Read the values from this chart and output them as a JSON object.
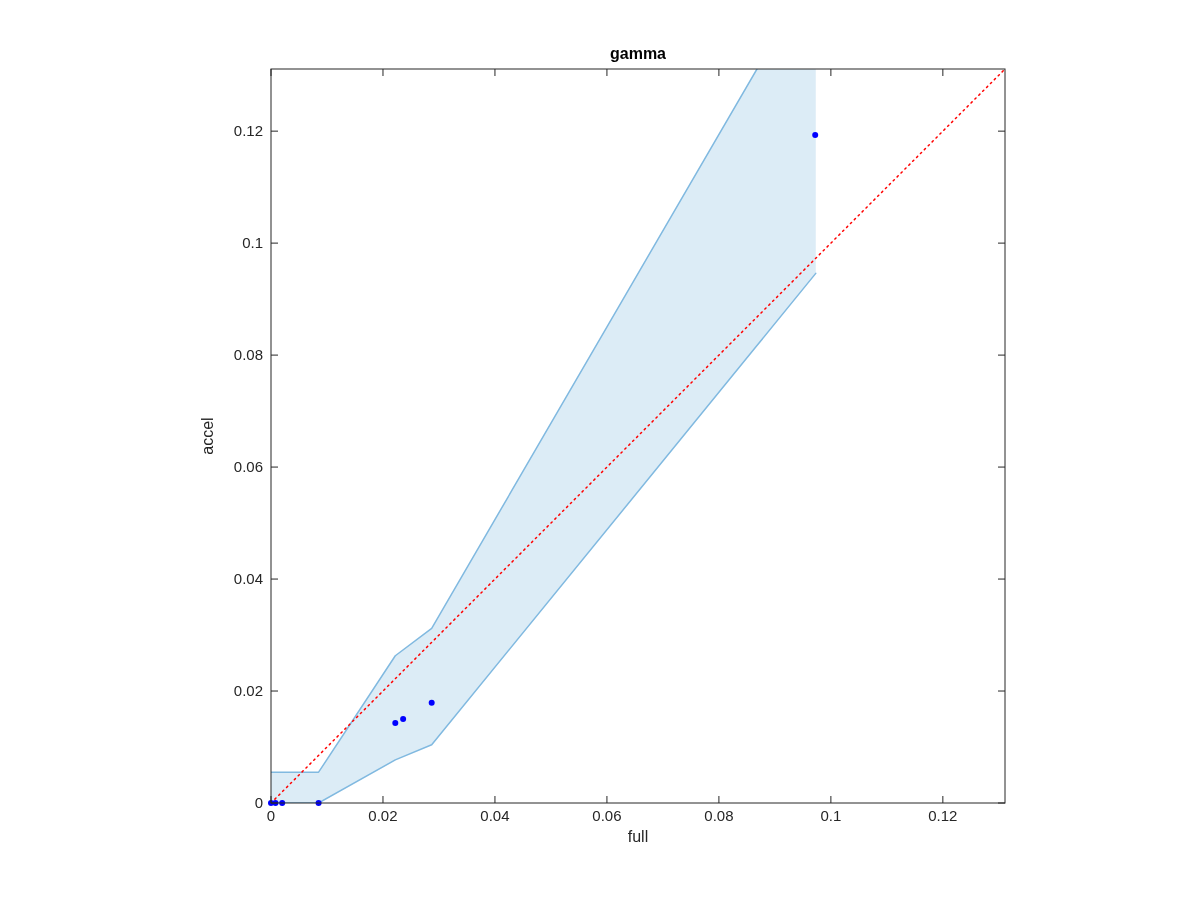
{
  "chart_data": {
    "type": "line",
    "title": "gamma",
    "xlabel": "full",
    "ylabel": "accel",
    "xlim": [
      0,
      0.1311
    ],
    "ylim": [
      0,
      0.1311
    ],
    "xticks": [
      0,
      0.02,
      0.04,
      0.06,
      0.08,
      0.1,
      0.12
    ],
    "yticks": [
      0,
      0.02,
      0.04,
      0.06,
      0.08,
      0.1,
      0.12
    ],
    "grid": false,
    "series": [
      {
        "color": "#80b9e0",
        "marker": "none",
        "x": [
          0,
          0.0085,
          0.0222,
          0.0287,
          0.0868,
          0.0973
        ],
        "values": [
          0,
          0,
          0.0077,
          0.0104,
          0.0817,
          0.0946
        ]
      },
      {
        "type": "line",
        "color": "#80b9e0",
        "marker": "none",
        "x": [
          0,
          0.0085,
          0.0222,
          0.0287,
          0.0868,
          0.0973
        ],
        "values": [
          0.0055,
          0.0055,
          0.0263,
          0.0312,
          0.1311,
          null
        ],
        "lower": [
          0,
          0,
          0.0077,
          0.0104,
          0.0817,
          0.0946
        ],
        "upper": [
          0.0055,
          0.0055,
          0.0263,
          0.0312,
          0.1311,
          0.1311
        ]
      },
      {
        "type": "line",
        "color": "#ff0000",
        "line_style": "dotted",
        "marker": "none",
        "x": [
          0,
          0.1311
        ],
        "values": [
          0,
          0.1311
        ]
      },
      {
        "type": "scatter",
        "color": "#0000ff",
        "marker": "circle",
        "x": [
          0,
          0.0008,
          0.002,
          0.0085,
          0.0222,
          0.0236,
          0.0287,
          0.0972
        ],
        "values": [
          0,
          0,
          0,
          0,
          0.0143,
          0.015,
          0.0179,
          0.1193
        ]
      }
    ]
  }
}
